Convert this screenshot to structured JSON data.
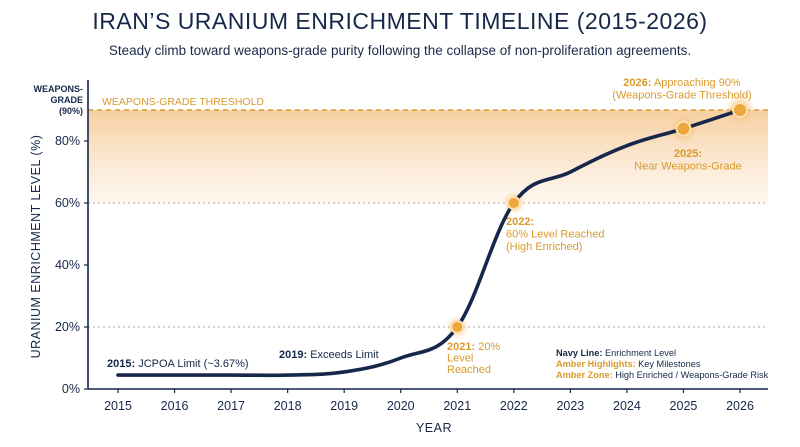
{
  "header": {
    "title": "IRAN’S URANIUM ENRICHMENT TIMELINE (2015-2026)",
    "subtitle": "Steady climb toward weapons-grade purity following the collapse of non-proliferation agreements."
  },
  "chart_data": {
    "type": "line",
    "xlabel": "YEAR",
    "ylabel": "URANIUM ENRICHMENT LEVEL (%)",
    "xlim": [
      2015,
      2026
    ],
    "ylim": [
      0,
      90
    ],
    "x_ticks": [
      2015,
      2016,
      2017,
      2018,
      2019,
      2020,
      2021,
      2022,
      2023,
      2024,
      2025,
      2026
    ],
    "y_ticks": [
      {
        "value": 0,
        "label": "0%"
      },
      {
        "value": 20,
        "label": "20%"
      },
      {
        "value": 40,
        "label": "40%"
      },
      {
        "value": 60,
        "label": "60%"
      },
      {
        "value": 80,
        "label": "80%"
      }
    ],
    "series": [
      {
        "x": [
          2015,
          2016,
          2017,
          2018,
          2019,
          2020,
          2021,
          2022,
          2023,
          2024,
          2025,
          2026
        ],
        "y": [
          4.5,
          4.5,
          4.5,
          4.5,
          5.5,
          10,
          20,
          60,
          70,
          78.5,
          84,
          90
        ]
      }
    ],
    "threshold": {
      "value": 90,
      "label": "WEAPONS-GRADE THRESHOLD",
      "axis_label": [
        "WEAPONS-",
        "GRADE",
        "(90%)"
      ]
    },
    "shaded_zone": [
      60,
      90
    ],
    "milestones": [
      {
        "x": 2021,
        "y": 20
      },
      {
        "x": 2022,
        "y": 60
      },
      {
        "x": 2025,
        "y": 84
      },
      {
        "x": 2026,
        "y": 90
      }
    ],
    "annotations": [
      {
        "year": "2015:",
        "lines": [
          "JCPOA Limit (~3.67%)"
        ],
        "style": "navy"
      },
      {
        "year": "2019:",
        "lines": [
          "Exceeds Limit"
        ],
        "style": "navy"
      },
      {
        "year": "2021:",
        "lines": [
          "20%",
          "Level",
          "Reached"
        ],
        "style": "amber"
      },
      {
        "year": "2022:",
        "lines": [
          "60% Level Reached",
          "(High Enriched)"
        ],
        "style": "amber"
      },
      {
        "year": "2025:",
        "lines": [
          "Near Weapons-Grade"
        ],
        "style": "amber"
      },
      {
        "year": "2026:",
        "lines": [
          "Approaching 90%",
          "(Weapons-Grade Threshold)"
        ],
        "style": "amber"
      }
    ],
    "legend": [
      {
        "key": "Navy Line:",
        "text": "Enrichment Level"
      },
      {
        "key": "Amber Highlights:",
        "text": "Key Milestones"
      },
      {
        "key": "Amber Zone:",
        "text": "High Enriched / Weapons-Grade Risk"
      }
    ],
    "legend_position": "bottom-right",
    "grid": true,
    "colors": {
      "navy": "#16274a",
      "amber": "#d99a2b",
      "zone": "#f6cc9c"
    }
  }
}
